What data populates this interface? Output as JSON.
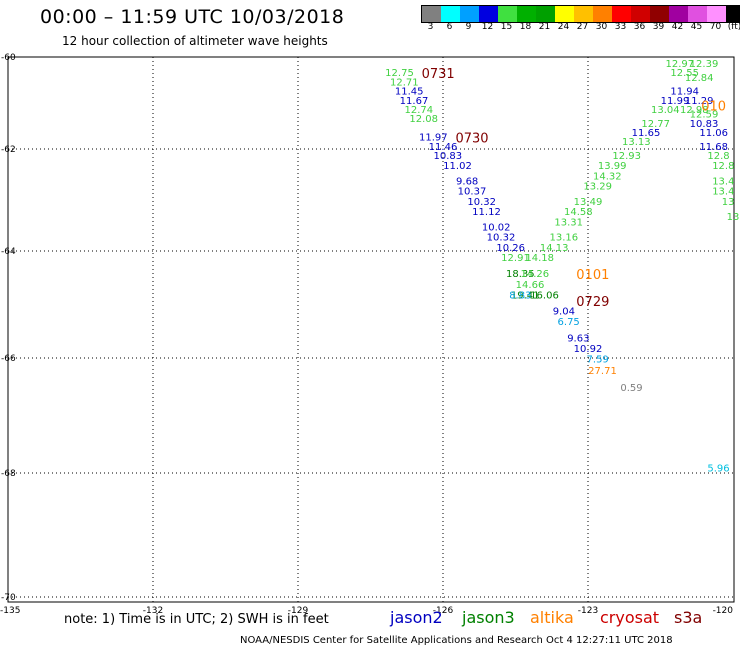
{
  "title": "00:00 – 11:59 UTC 10/03/2018",
  "subtitle": "12 hour collection of altimeter wave heights",
  "color_scale": {
    "colors": [
      "#808080",
      "#00ffff",
      "#00a0ff",
      "#0000e0",
      "#40e040",
      "#00b000",
      "#00a000",
      "#ffff00",
      "#ffc000",
      "#ff8000",
      "#ff0000",
      "#d00000",
      "#900000",
      "#a000a0",
      "#e050e0",
      "#ff90ff",
      "#000000"
    ],
    "labels": [
      "3",
      "6",
      "9",
      "12",
      "15",
      "18",
      "21",
      "24",
      "27",
      "30",
      "33",
      "36",
      "39",
      "42",
      "45",
      "70",
      "(ft)"
    ]
  },
  "map": {
    "lat_labels": [
      "-60",
      "-62",
      "-64",
      "-66",
      "-68",
      "-70"
    ],
    "lon_labels": [
      "-135",
      "-132",
      "-129",
      "-126",
      "-123",
      "-120"
    ]
  },
  "chart_data": {
    "type": "scatter",
    "title": "00:00 – 11:59 UTC 10/03/2018",
    "subtitle": "12 hour collection of altimeter wave heights",
    "units": "ft",
    "lat_ticks": [
      -60,
      -62,
      -64,
      -66,
      -68,
      -70
    ],
    "lon_ticks": [
      -135,
      -132,
      -129,
      -126,
      -123,
      -120
    ],
    "lat_range": [
      -70,
      -60
    ],
    "lon_range": [
      -135,
      -120
    ],
    "grid": true,
    "pass_labels": [
      {
        "text": "0731",
        "lon": -126.1,
        "lat": -60.2,
        "color": "#800000"
      },
      {
        "text": "0730",
        "lon": -125.4,
        "lat": -61.6,
        "color": "#800000"
      },
      {
        "text": "0729",
        "lon": -122.9,
        "lat": -64.8,
        "color": "#800000"
      },
      {
        "text": "0101",
        "lon": -122.9,
        "lat": -64.3,
        "color": "#ff8000"
      },
      {
        "text": "010",
        "lon": -120.4,
        "lat": -60.9,
        "color": "#ff8000"
      }
    ],
    "points": [
      {
        "text": "12.75",
        "lon": -126.9,
        "lat": -60.2,
        "color": "#40d040"
      },
      {
        "text": "12.71",
        "lon": -126.8,
        "lat": -60.4,
        "color": "#40d040"
      },
      {
        "text": "11.45",
        "lon": -126.7,
        "lat": -60.6,
        "color": "#0000c0"
      },
      {
        "text": "11.67",
        "lon": -126.6,
        "lat": -60.8,
        "color": "#0000c0"
      },
      {
        "text": "12.74",
        "lon": -126.5,
        "lat": -61.0,
        "color": "#40d040"
      },
      {
        "text": "12.08",
        "lon": -126.4,
        "lat": -61.2,
        "color": "#40d040"
      },
      {
        "text": "11.97",
        "lon": -126.2,
        "lat": -61.6,
        "color": "#0000c0"
      },
      {
        "text": "11.46",
        "lon": -126.0,
        "lat": -61.8,
        "color": "#0000c0"
      },
      {
        "text": "10.83",
        "lon": -125.9,
        "lat": -62.0,
        "color": "#0000c0"
      },
      {
        "text": "11.02",
        "lon": -125.7,
        "lat": -62.2,
        "color": "#0000c0"
      },
      {
        "text": "9.68",
        "lon": -125.5,
        "lat": -62.5,
        "color": "#0000c0"
      },
      {
        "text": "10.37",
        "lon": -125.4,
        "lat": -62.7,
        "color": "#0000c0"
      },
      {
        "text": "10.32",
        "lon": -125.2,
        "lat": -62.9,
        "color": "#0000c0"
      },
      {
        "text": "11.12",
        "lon": -125.1,
        "lat": -63.1,
        "color": "#0000c0"
      },
      {
        "text": "10.02",
        "lon": -124.9,
        "lat": -63.4,
        "color": "#0000c0"
      },
      {
        "text": "10.32",
        "lon": -124.8,
        "lat": -63.6,
        "color": "#0000c0"
      },
      {
        "text": "10.26",
        "lon": -124.6,
        "lat": -63.8,
        "color": "#0000c0"
      },
      {
        "text": "12.91",
        "lon": -124.5,
        "lat": -64.0,
        "color": "#40d040"
      },
      {
        "text": "14.18",
        "lon": -124.0,
        "lat": -64.0,
        "color": "#40d040"
      },
      {
        "text": "18.35",
        "lon": -124.4,
        "lat": -64.3,
        "color": "#008000"
      },
      {
        "text": "14.26",
        "lon": -124.1,
        "lat": -64.3,
        "color": "#40d040"
      },
      {
        "text": "14.66",
        "lon": -124.2,
        "lat": -64.5,
        "color": "#40d040"
      },
      {
        "text": "19.41",
        "lon": -124.3,
        "lat": -64.7,
        "color": "#008000"
      },
      {
        "text": "16.06",
        "lon": -123.9,
        "lat": -64.7,
        "color": "#008000"
      },
      {
        "text": "8.83",
        "lon": -124.4,
        "lat": -64.7,
        "color": "#00a0e0"
      },
      {
        "text": "9.04",
        "lon": -123.5,
        "lat": -65.0,
        "color": "#0000c0"
      },
      {
        "text": "6.75",
        "lon": -123.4,
        "lat": -65.2,
        "color": "#00a0e0"
      },
      {
        "text": "9.63",
        "lon": -123.2,
        "lat": -65.5,
        "color": "#0000c0"
      },
      {
        "text": "10.92",
        "lon": -123.0,
        "lat": -65.7,
        "color": "#0000c0"
      },
      {
        "text": "7.59",
        "lon": -122.8,
        "lat": -65.9,
        "color": "#00a0e0"
      },
      {
        "text": "27.71",
        "lon": -122.7,
        "lat": -66.1,
        "color": "#ff8000"
      },
      {
        "text": "0.59",
        "lon": -122.1,
        "lat": -66.4,
        "color": "#808080"
      },
      {
        "text": "14.13",
        "lon": -123.7,
        "lat": -63.8,
        "color": "#40d040"
      },
      {
        "text": "13.16",
        "lon": -123.5,
        "lat": -63.6,
        "color": "#40d040"
      },
      {
        "text": "13.31",
        "lon": -123.4,
        "lat": -63.3,
        "color": "#40d040"
      },
      {
        "text": "14.58",
        "lon": -123.2,
        "lat": -63.1,
        "color": "#40d040"
      },
      {
        "text": "13.49",
        "lon": -123.0,
        "lat": -62.9,
        "color": "#40d040"
      },
      {
        "text": "13.29",
        "lon": -122.8,
        "lat": -62.6,
        "color": "#40d040"
      },
      {
        "text": "14.32",
        "lon": -122.6,
        "lat": -62.4,
        "color": "#40d040"
      },
      {
        "text": "13.99",
        "lon": -122.5,
        "lat": -62.2,
        "color": "#40d040"
      },
      {
        "text": "12.93",
        "lon": -122.2,
        "lat": -62.0,
        "color": "#40d040"
      },
      {
        "text": "13.13",
        "lon": -122.0,
        "lat": -61.7,
        "color": "#40d040"
      },
      {
        "text": "11.65",
        "lon": -121.8,
        "lat": -61.5,
        "color": "#0000c0"
      },
      {
        "text": "12.77",
        "lon": -121.6,
        "lat": -61.3,
        "color": "#40d040"
      },
      {
        "text": "13.04",
        "lon": -121.4,
        "lat": -61.0,
        "color": "#40d040"
      },
      {
        "text": "11.99",
        "lon": -121.2,
        "lat": -60.8,
        "color": "#0000c0"
      },
      {
        "text": "11.94",
        "lon": -121.0,
        "lat": -60.6,
        "color": "#0000c0"
      },
      {
        "text": "12.97",
        "lon": -121.1,
        "lat": -60.0,
        "color": "#40d040"
      },
      {
        "text": "12.39",
        "lon": -120.6,
        "lat": -60.0,
        "color": "#40d040"
      },
      {
        "text": "12.55",
        "lon": -121.0,
        "lat": -60.2,
        "color": "#40d040"
      },
      {
        "text": "12.84",
        "lon": -120.7,
        "lat": -60.3,
        "color": "#40d040"
      },
      {
        "text": "11.29",
        "lon": -120.7,
        "lat": -60.8,
        "color": "#0000c0"
      },
      {
        "text": "12.98",
        "lon": -120.8,
        "lat": -61.0,
        "color": "#40d040"
      },
      {
        "text": "12.59",
        "lon": -120.6,
        "lat": -61.1,
        "color": "#40d040"
      },
      {
        "text": "10.83",
        "lon": -120.6,
        "lat": -61.3,
        "color": "#0000c0"
      },
      {
        "text": "11.06",
        "lon": -120.4,
        "lat": -61.5,
        "color": "#0000c0"
      },
      {
        "text": "11.68",
        "lon": -120.4,
        "lat": -61.8,
        "color": "#0000c0"
      },
      {
        "text": "12.8",
        "lon": -120.3,
        "lat": -62.0,
        "color": "#40d040"
      },
      {
        "text": "12.8",
        "lon": -120.2,
        "lat": -62.2,
        "color": "#40d040"
      },
      {
        "text": "13.4",
        "lon": -120.2,
        "lat": -62.5,
        "color": "#40d040"
      },
      {
        "text": "13.4",
        "lon": -120.2,
        "lat": -62.7,
        "color": "#40d040"
      },
      {
        "text": "13",
        "lon": -120.1,
        "lat": -62.9,
        "color": "#40d040"
      },
      {
        "text": "13",
        "lon": -120.0,
        "lat": -63.2,
        "color": "#40d040"
      },
      {
        "text": "5.96",
        "lon": -120.3,
        "lat": -67.8,
        "color": "#00c0e0"
      }
    ]
  },
  "note": "note:  1) Time is in UTC;  2) SWH is in feet",
  "legend": [
    {
      "label": "jason2",
      "color": "#0000c0"
    },
    {
      "label": "jason3",
      "color": "#008000"
    },
    {
      "label": "altika",
      "color": "#ff8000"
    },
    {
      "label": "cryosat",
      "color": "#cc0000"
    },
    {
      "label": "s3a",
      "color": "#800000"
    }
  ],
  "credit": "NOAA/NESDIS Center for Satellite Applications and Research    Oct  4 12:27:11 UTC 2018"
}
